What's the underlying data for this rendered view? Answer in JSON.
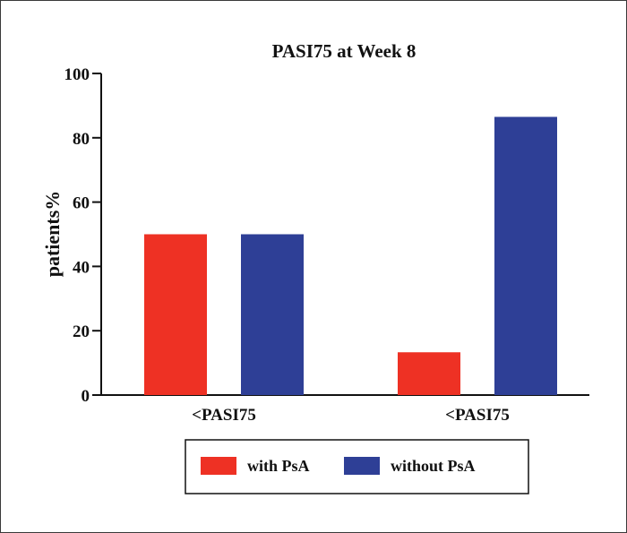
{
  "chart_data": {
    "type": "bar",
    "title": "PASI75 at Week 8",
    "xlabel": "",
    "ylabel": "patients%",
    "ylim": [
      0,
      100
    ],
    "yticks": [
      0,
      20,
      40,
      60,
      80,
      100
    ],
    "categories": [
      "<PASI75",
      "<PASI75"
    ],
    "series": [
      {
        "name": "with PsA",
        "color": "#ee3124",
        "values": [
          50,
          13.3
        ]
      },
      {
        "name": "without PsA",
        "color": "#2e3f96",
        "values": [
          50,
          86.5
        ]
      }
    ],
    "legend_position": "bottom"
  }
}
